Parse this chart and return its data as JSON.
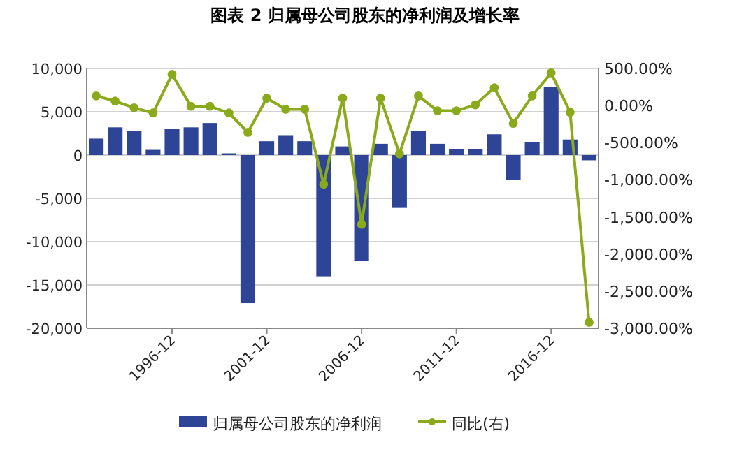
{
  "chart_data": {
    "type": "bar",
    "title": "图表 2 归属母公司股东的净利润及增长率",
    "categories": [
      null,
      null,
      null,
      null,
      "1996-12",
      null,
      null,
      null,
      null,
      "2001-12",
      null,
      null,
      null,
      null,
      "2006-12",
      null,
      null,
      null,
      null,
      "2011-12",
      null,
      null,
      null,
      null,
      "2016-12",
      null,
      null
    ],
    "series": [
      {
        "name": "归属母公司股东的净利润",
        "color": "#2e4597",
        "values": [
          1900,
          3200,
          2800,
          600,
          3000,
          3200,
          3700,
          200,
          -17100,
          1600,
          2300,
          1600,
          -14000,
          1000,
          -12200,
          1300,
          -6100,
          2800,
          1300,
          700,
          700,
          2400,
          -2900,
          1500,
          7900,
          1800,
          -600
        ]
      },
      {
        "name": "同比(右)",
        "type": "line",
        "axis": "y2",
        "color": "#8aaa1b",
        "values": [
          130,
          60,
          -30,
          -100,
          420,
          -10,
          -10,
          -100,
          -360,
          100,
          -50,
          -50,
          -1060,
          100,
          -1600,
          100,
          -650,
          130,
          -70,
          -70,
          10,
          240,
          -240,
          130,
          440,
          -90,
          -2920
        ]
      }
    ],
    "ylim": [
      -20000,
      10000
    ],
    "yticks": [
      {
        "value": -20000,
        "label": "-20,000"
      },
      {
        "value": -15000,
        "label": "-15,000"
      },
      {
        "value": -10000,
        "label": "-10,000"
      },
      {
        "value": -5000,
        "label": "-5,000"
      },
      0,
      {
        "value": 5000,
        "label": "5,000"
      },
      {
        "value": 10000,
        "label": "10,000"
      }
    ],
    "y2lim": [
      -3000,
      500
    ],
    "y2ticks": [
      {
        "value": -3000,
        "label": "-3,000.00%"
      },
      {
        "value": -2500,
        "label": "-2,500.00%"
      },
      {
        "value": -2000,
        "label": "-2,000.00%"
      },
      {
        "value": -1500,
        "label": "-1,500.00%"
      },
      {
        "value": -1000,
        "label": "-1,000.00%"
      },
      {
        "value": -500,
        "label": "-500.00%"
      },
      {
        "value": 0,
        "label": "0.00%"
      },
      {
        "value": 500,
        "label": "500.00%"
      }
    ],
    "grid": "y",
    "legend": "bottom",
    "marker": "circle"
  }
}
